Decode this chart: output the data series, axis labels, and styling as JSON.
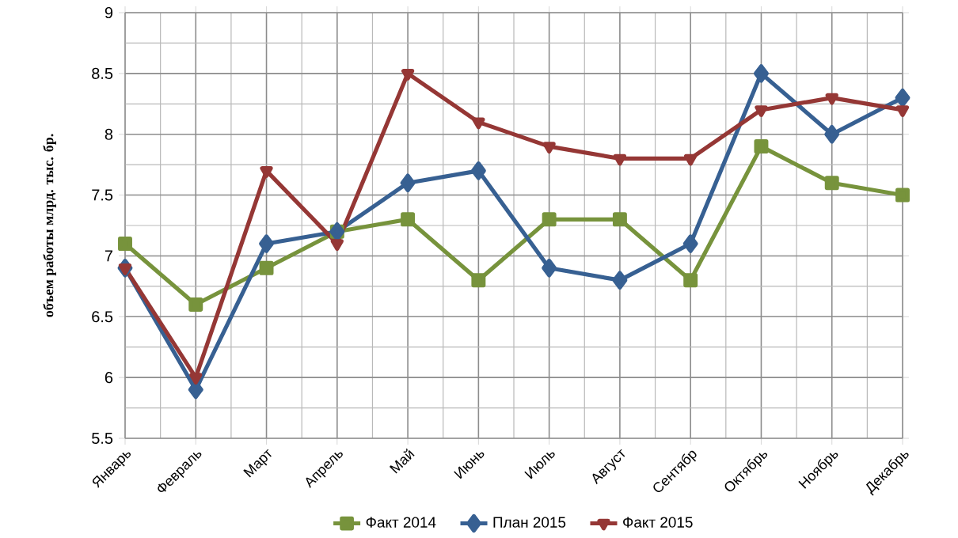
{
  "chart_data": {
    "type": "line",
    "ylabel": "объем работы млрд. тыс. бр.",
    "categories": [
      "Январь",
      "Февраль",
      "Март",
      "Апрель",
      "Май",
      "Июнь",
      "Июль",
      "Август",
      "Сентябр",
      "Октябрь",
      "Ноябрь",
      "Декабрь"
    ],
    "series": [
      {
        "name": "Факт 2014",
        "color": "#77933c",
        "marker": "square",
        "values": [
          7.1,
          6.6,
          6.9,
          7.2,
          7.3,
          6.8,
          7.3,
          7.3,
          6.8,
          7.9,
          7.6,
          7.5
        ]
      },
      {
        "name": "План 2015",
        "color": "#376092",
        "marker": "diamond",
        "values": [
          6.9,
          5.9,
          7.1,
          7.2,
          7.6,
          7.7,
          6.9,
          6.8,
          7.1,
          8.5,
          8.0,
          8.3
        ]
      },
      {
        "name": "Факт 2015",
        "color": "#953735",
        "marker": "triangle",
        "values": [
          6.9,
          6.0,
          7.7,
          7.1,
          8.5,
          8.1,
          7.9,
          7.8,
          7.8,
          8.2,
          8.3,
          8.2
        ]
      }
    ],
    "ylim": [
      5.5,
      9
    ],
    "yticks": [
      5.5,
      6,
      6.5,
      7,
      7.5,
      8,
      8.5,
      9
    ],
    "grid": true,
    "legend": "bottom",
    "line_style": "solid"
  }
}
